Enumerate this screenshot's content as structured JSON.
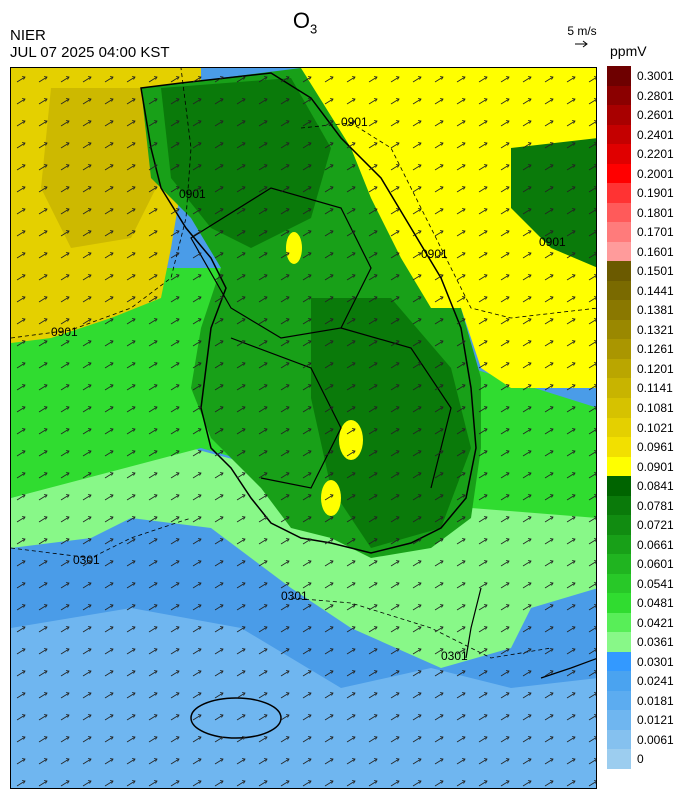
{
  "header": {
    "title_main": "O",
    "title_sub": "3",
    "agency": "NIER",
    "timestamp": "JUL 07 2025 04:00 KST",
    "wind_reference": "5 m/s",
    "unit": "ppmV"
  },
  "contour_labels": [
    "0901",
    "0901",
    "0901",
    "0901",
    "0301",
    "0301",
    "0901",
    "0301"
  ],
  "legend": {
    "labels": [
      "0.3001",
      "0.2801",
      "0.2601",
      "0.2401",
      "0.2201",
      "0.2001",
      "0.1901",
      "0.1801",
      "0.1701",
      "0.1601",
      "0.1501",
      "0.1441",
      "0.1381",
      "0.1321",
      "0.1261",
      "0.1201",
      "0.1141",
      "0.1081",
      "0.1021",
      "0.0961",
      "0.0901",
      "0.0841",
      "0.0781",
      "0.0721",
      "0.0661",
      "0.0601",
      "0.0541",
      "0.0481",
      "0.0421",
      "0.0361",
      "0.0301",
      "0.0241",
      "0.0181",
      "0.0121",
      "0.0061",
      "0"
    ],
    "colors": [
      "#6e0000",
      "#8b0000",
      "#a80000",
      "#c40000",
      "#e00000",
      "#ff0000",
      "#ff3333",
      "#ff5a5a",
      "#ff7b7b",
      "#ff9b9b",
      "#6b5a00",
      "#7a6a00",
      "#8a7800",
      "#9a8800",
      "#aa9600",
      "#baa600",
      "#c8b400",
      "#d6c200",
      "#e4d000",
      "#f2e000",
      "#ffff00",
      "#006400",
      "#0a7a0a",
      "#118c11",
      "#18a018",
      "#20b420",
      "#28c828",
      "#30dc30",
      "#58ee58",
      "#88f888",
      "#3399ff",
      "#4aa3f0",
      "#5cacf0",
      "#6fb6f0",
      "#85c1ef",
      "#9ccdef"
    ]
  }
}
